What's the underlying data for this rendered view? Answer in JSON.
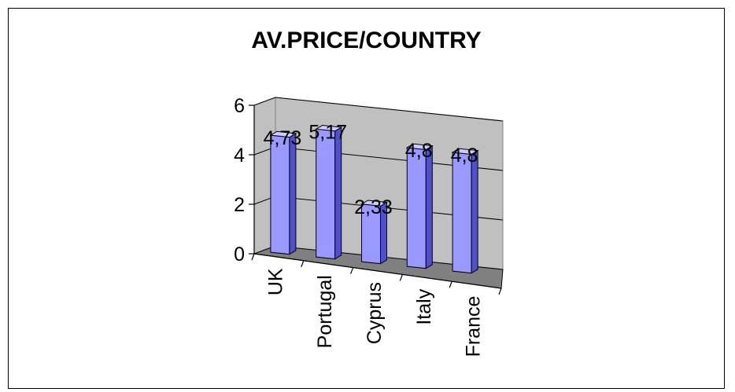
{
  "chart_data": {
    "type": "bar",
    "title": "AV.PRICE/COUNTRY",
    "categories": [
      "UK",
      "Portugal",
      "Cyprus",
      "Italy",
      "France"
    ],
    "values": [
      4.73,
      5.17,
      2.33,
      4.8,
      4.8
    ],
    "data_labels": [
      "4,73",
      "5,17",
      "2,33",
      "4,8",
      "4,8"
    ],
    "y_ticks": [
      "0",
      "2",
      "4",
      "6"
    ],
    "ylim": [
      0,
      6
    ],
    "xlabel": "",
    "ylabel": "",
    "grid": true,
    "legend": "none",
    "style": "3d-column",
    "colors": {
      "bar_front": "#9999ff",
      "bar_side": "#5050c8",
      "bar_top": "#ccccff",
      "back_wall": "#c0c0c0",
      "side_wall": "#c0c0c0",
      "floor": "#808080"
    }
  }
}
